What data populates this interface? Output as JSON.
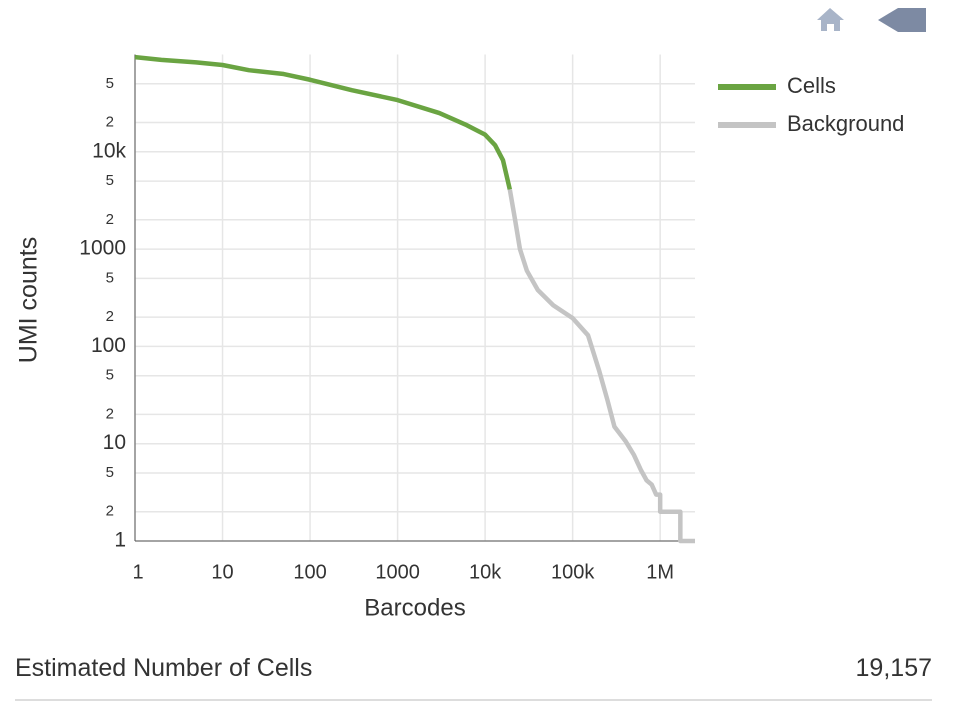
{
  "chart_data": {
    "type": "line",
    "xlabel": "Barcodes",
    "ylabel": "UMI counts",
    "xscale": "log",
    "yscale": "log",
    "grid": true,
    "legend": "top-right",
    "xlim": [
      1,
      2500000
    ],
    "ylim": [
      1,
      100000
    ],
    "xticks": [
      1,
      10,
      100,
      1000,
      {
        "value": 10000,
        "label": "10k"
      },
      {
        "value": 100000,
        "label": "100k"
      },
      {
        "value": 1000000,
        "label": "1M"
      }
    ],
    "yticks": [
      1,
      2,
      5,
      10,
      {
        "value": 20,
        "label": "2"
      },
      {
        "value": 50,
        "label": "5"
      },
      100,
      {
        "value": 200,
        "label": "2"
      },
      {
        "value": 500,
        "label": "5"
      },
      1000,
      {
        "value": 2000,
        "label": "2"
      },
      {
        "value": 5000,
        "label": "5"
      },
      {
        "value": 10000,
        "label": "10k"
      },
      {
        "value": 20000,
        "label": "2"
      },
      {
        "value": 50000,
        "label": "5"
      }
    ],
    "series": [
      {
        "name": "Cells",
        "color": "#6aa442",
        "x": [
          1,
          2,
          5,
          10,
          20,
          50,
          100,
          300,
          1000,
          3000,
          6000,
          10000,
          13000,
          16000,
          19157
        ],
        "values": [
          94000,
          88000,
          83000,
          78000,
          69000,
          63000,
          55000,
          43000,
          34000,
          25000,
          19000,
          15000,
          11700,
          8200,
          4100
        ]
      },
      {
        "name": "Background",
        "color": "#c4c4c4",
        "x": [
          19158,
          22000,
          25000,
          30000,
          40000,
          60000,
          100000,
          150000,
          200000,
          250000,
          300000,
          400000,
          500000,
          600000,
          700000,
          800000,
          900000,
          1000000,
          1000000,
          1700000,
          1700000,
          2500000
        ],
        "values": [
          4100,
          2000,
          1000,
          600,
          380,
          265,
          195,
          130,
          57,
          28,
          15,
          10.7,
          7.7,
          5.4,
          4.2,
          3.8,
          3,
          3,
          2,
          2,
          1,
          1
        ]
      }
    ]
  },
  "metric": {
    "label": "Estimated Number of Cells",
    "value": "19,157"
  }
}
